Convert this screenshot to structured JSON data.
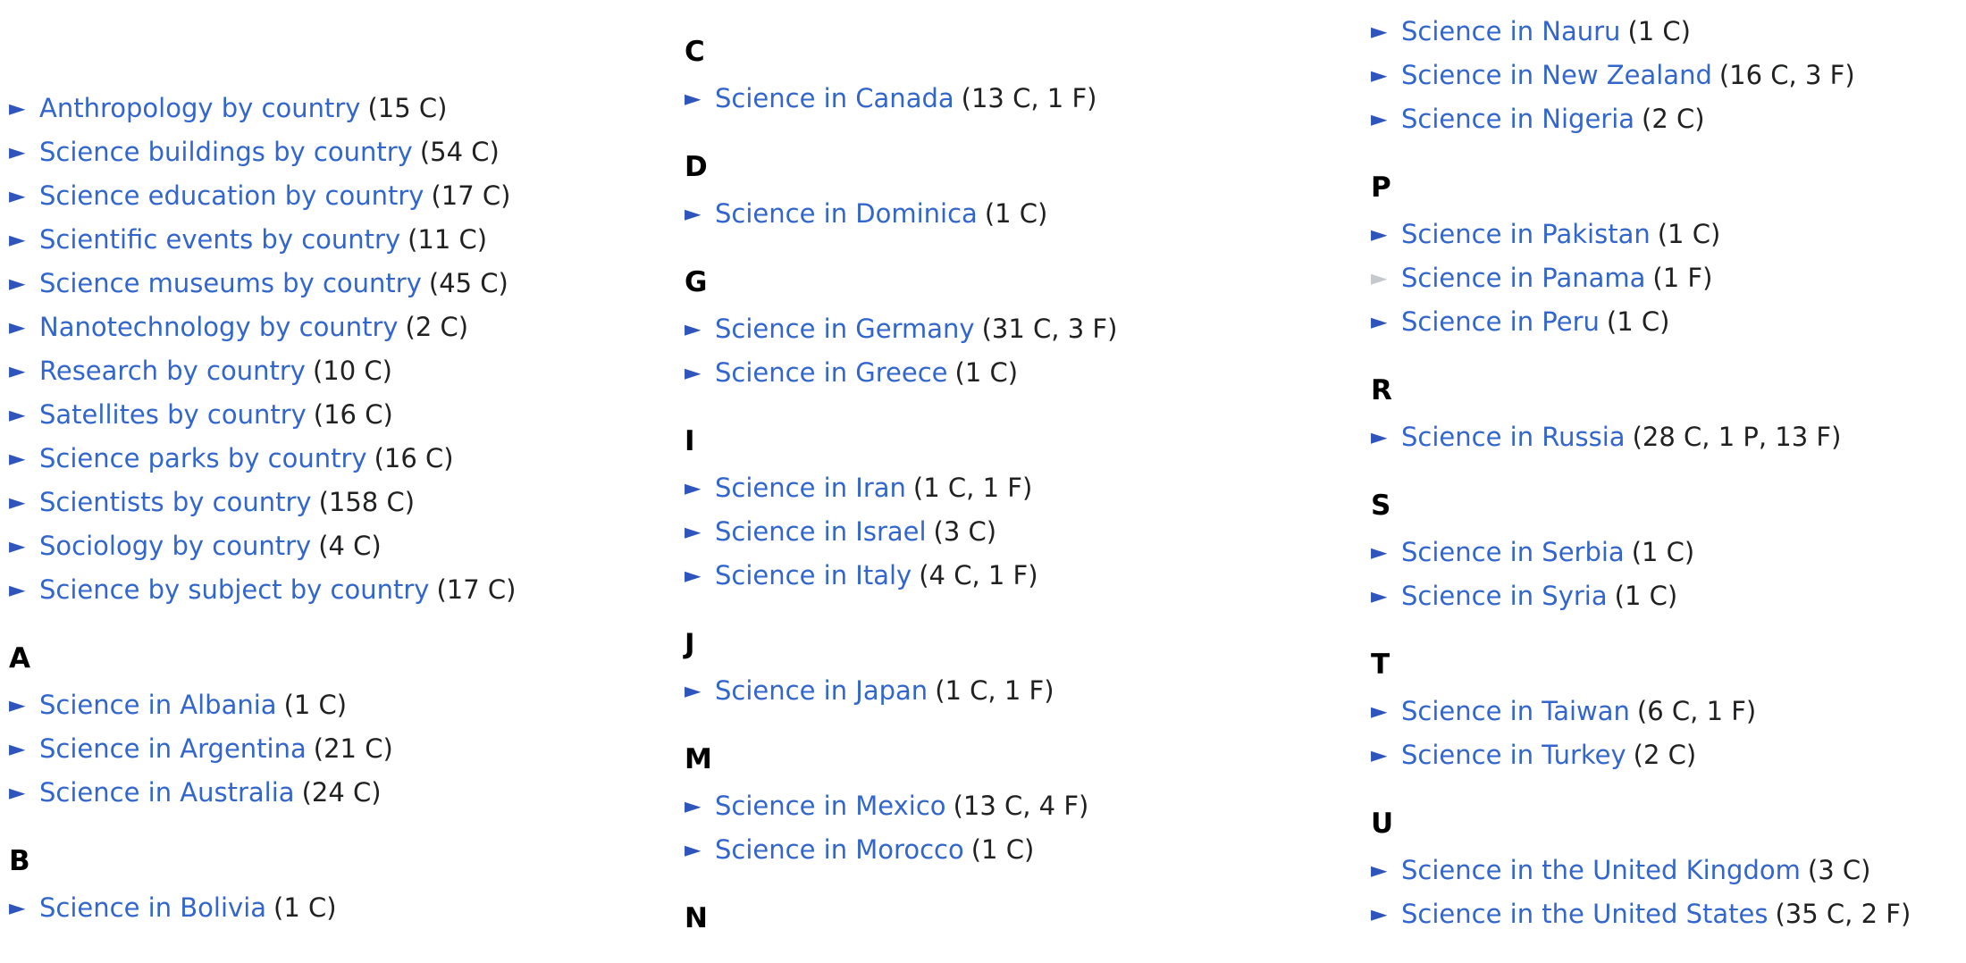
{
  "page": {
    "background": "#ffffff"
  },
  "colors": {
    "link": "#3366cc",
    "arrow": "#2f55bd",
    "arrow_inactive": "#c5c8cc",
    "count": "#202122",
    "heading": "#000000"
  },
  "icons": {
    "expand_glyph": "►",
    "expand_name": "triangle-right-expand-icon"
  },
  "columns": [
    {
      "blocks": [
        {
          "type": "items",
          "items": [
            {
              "label": "Anthropology by country",
              "count": "(15 C)"
            },
            {
              "label": "Science buildings by country",
              "count": "(54 C)"
            },
            {
              "label": "Science education by country",
              "count": "(17 C)"
            },
            {
              "label": "Scientific events by country",
              "count": "(11 C)"
            },
            {
              "label": "Science museums by country",
              "count": "(45 C)"
            },
            {
              "label": "Nanotechnology by country",
              "count": "(2 C)"
            },
            {
              "label": "Research by country",
              "count": "(10 C)"
            },
            {
              "label": "Satellites by country",
              "count": "(16 C)"
            },
            {
              "label": "Science parks by country",
              "count": "(16 C)"
            },
            {
              "label": "Scientists by country",
              "count": "(158 C)"
            },
            {
              "label": "Sociology by country",
              "count": "(4 C)"
            },
            {
              "label": "Science by subject by country",
              "count": "(17 C)"
            }
          ]
        },
        {
          "type": "heading",
          "label": "A"
        },
        {
          "type": "items",
          "items": [
            {
              "label": "Science in Albania",
              "count": "(1 C)"
            },
            {
              "label": "Science in Argentina",
              "count": "(21 C)"
            },
            {
              "label": "Science in Australia",
              "count": "(24 C)"
            }
          ]
        },
        {
          "type": "heading",
          "label": "B"
        },
        {
          "type": "items",
          "items": [
            {
              "label": "Science in Bolivia",
              "count": "(1 C)"
            }
          ]
        }
      ]
    },
    {
      "blocks": [
        {
          "type": "heading",
          "label": "C"
        },
        {
          "type": "items",
          "items": [
            {
              "label": "Science in Canada",
              "count": "(13 C, 1 F)"
            }
          ]
        },
        {
          "type": "heading",
          "label": "D"
        },
        {
          "type": "items",
          "items": [
            {
              "label": "Science in Dominica",
              "count": "(1 C)"
            }
          ]
        },
        {
          "type": "heading",
          "label": "G"
        },
        {
          "type": "items",
          "items": [
            {
              "label": "Science in Germany",
              "count": "(31 C, 3 F)"
            },
            {
              "label": "Science in Greece",
              "count": "(1 C)"
            }
          ]
        },
        {
          "type": "heading",
          "label": "I"
        },
        {
          "type": "items",
          "items": [
            {
              "label": "Science in Iran",
              "count": "(1 C, 1 F)"
            },
            {
              "label": "Science in Israel",
              "count": "(3 C)"
            },
            {
              "label": "Science in Italy",
              "count": "(4 C, 1 F)"
            }
          ]
        },
        {
          "type": "heading",
          "label": "J"
        },
        {
          "type": "items",
          "items": [
            {
              "label": "Science in Japan",
              "count": "(1 C, 1 F)"
            }
          ]
        },
        {
          "type": "heading",
          "label": "M"
        },
        {
          "type": "items",
          "items": [
            {
              "label": "Science in Mexico",
              "count": "(13 C, 4 F)"
            },
            {
              "label": "Science in Morocco",
              "count": "(1 C)"
            }
          ]
        },
        {
          "type": "heading",
          "label": "N"
        }
      ]
    },
    {
      "blocks": [
        {
          "type": "items",
          "items": [
            {
              "label": "Science in Nauru",
              "count": "(1 C)"
            },
            {
              "label": "Science in New Zealand",
              "count": "(16 C, 3 F)"
            },
            {
              "label": "Science in Nigeria",
              "count": "(2 C)"
            }
          ]
        },
        {
          "type": "heading",
          "label": "P"
        },
        {
          "type": "items",
          "items": [
            {
              "label": "Science in Pakistan",
              "count": "(1 C)"
            },
            {
              "label": "Science in Panama",
              "count": "(1 F)",
              "inactive": true
            },
            {
              "label": "Science in Peru",
              "count": "(1 C)"
            }
          ]
        },
        {
          "type": "heading",
          "label": "R"
        },
        {
          "type": "items",
          "items": [
            {
              "label": "Science in Russia",
              "count": "(28 C, 1 P, 13 F)"
            }
          ]
        },
        {
          "type": "heading",
          "label": "S"
        },
        {
          "type": "items",
          "items": [
            {
              "label": "Science in Serbia",
              "count": "(1 C)"
            },
            {
              "label": "Science in Syria",
              "count": "(1 C)"
            }
          ]
        },
        {
          "type": "heading",
          "label": "T"
        },
        {
          "type": "items",
          "items": [
            {
              "label": "Science in Taiwan",
              "count": "(6 C, 1 F)"
            },
            {
              "label": "Science in Turkey",
              "count": "(2 C)"
            }
          ]
        },
        {
          "type": "heading",
          "label": "U"
        },
        {
          "type": "items",
          "items": [
            {
              "label": "Science in the United Kingdom",
              "count": "(3 C)"
            },
            {
              "label": "Science in the United States",
              "count": "(35 C, 2 F)"
            }
          ]
        }
      ]
    }
  ]
}
